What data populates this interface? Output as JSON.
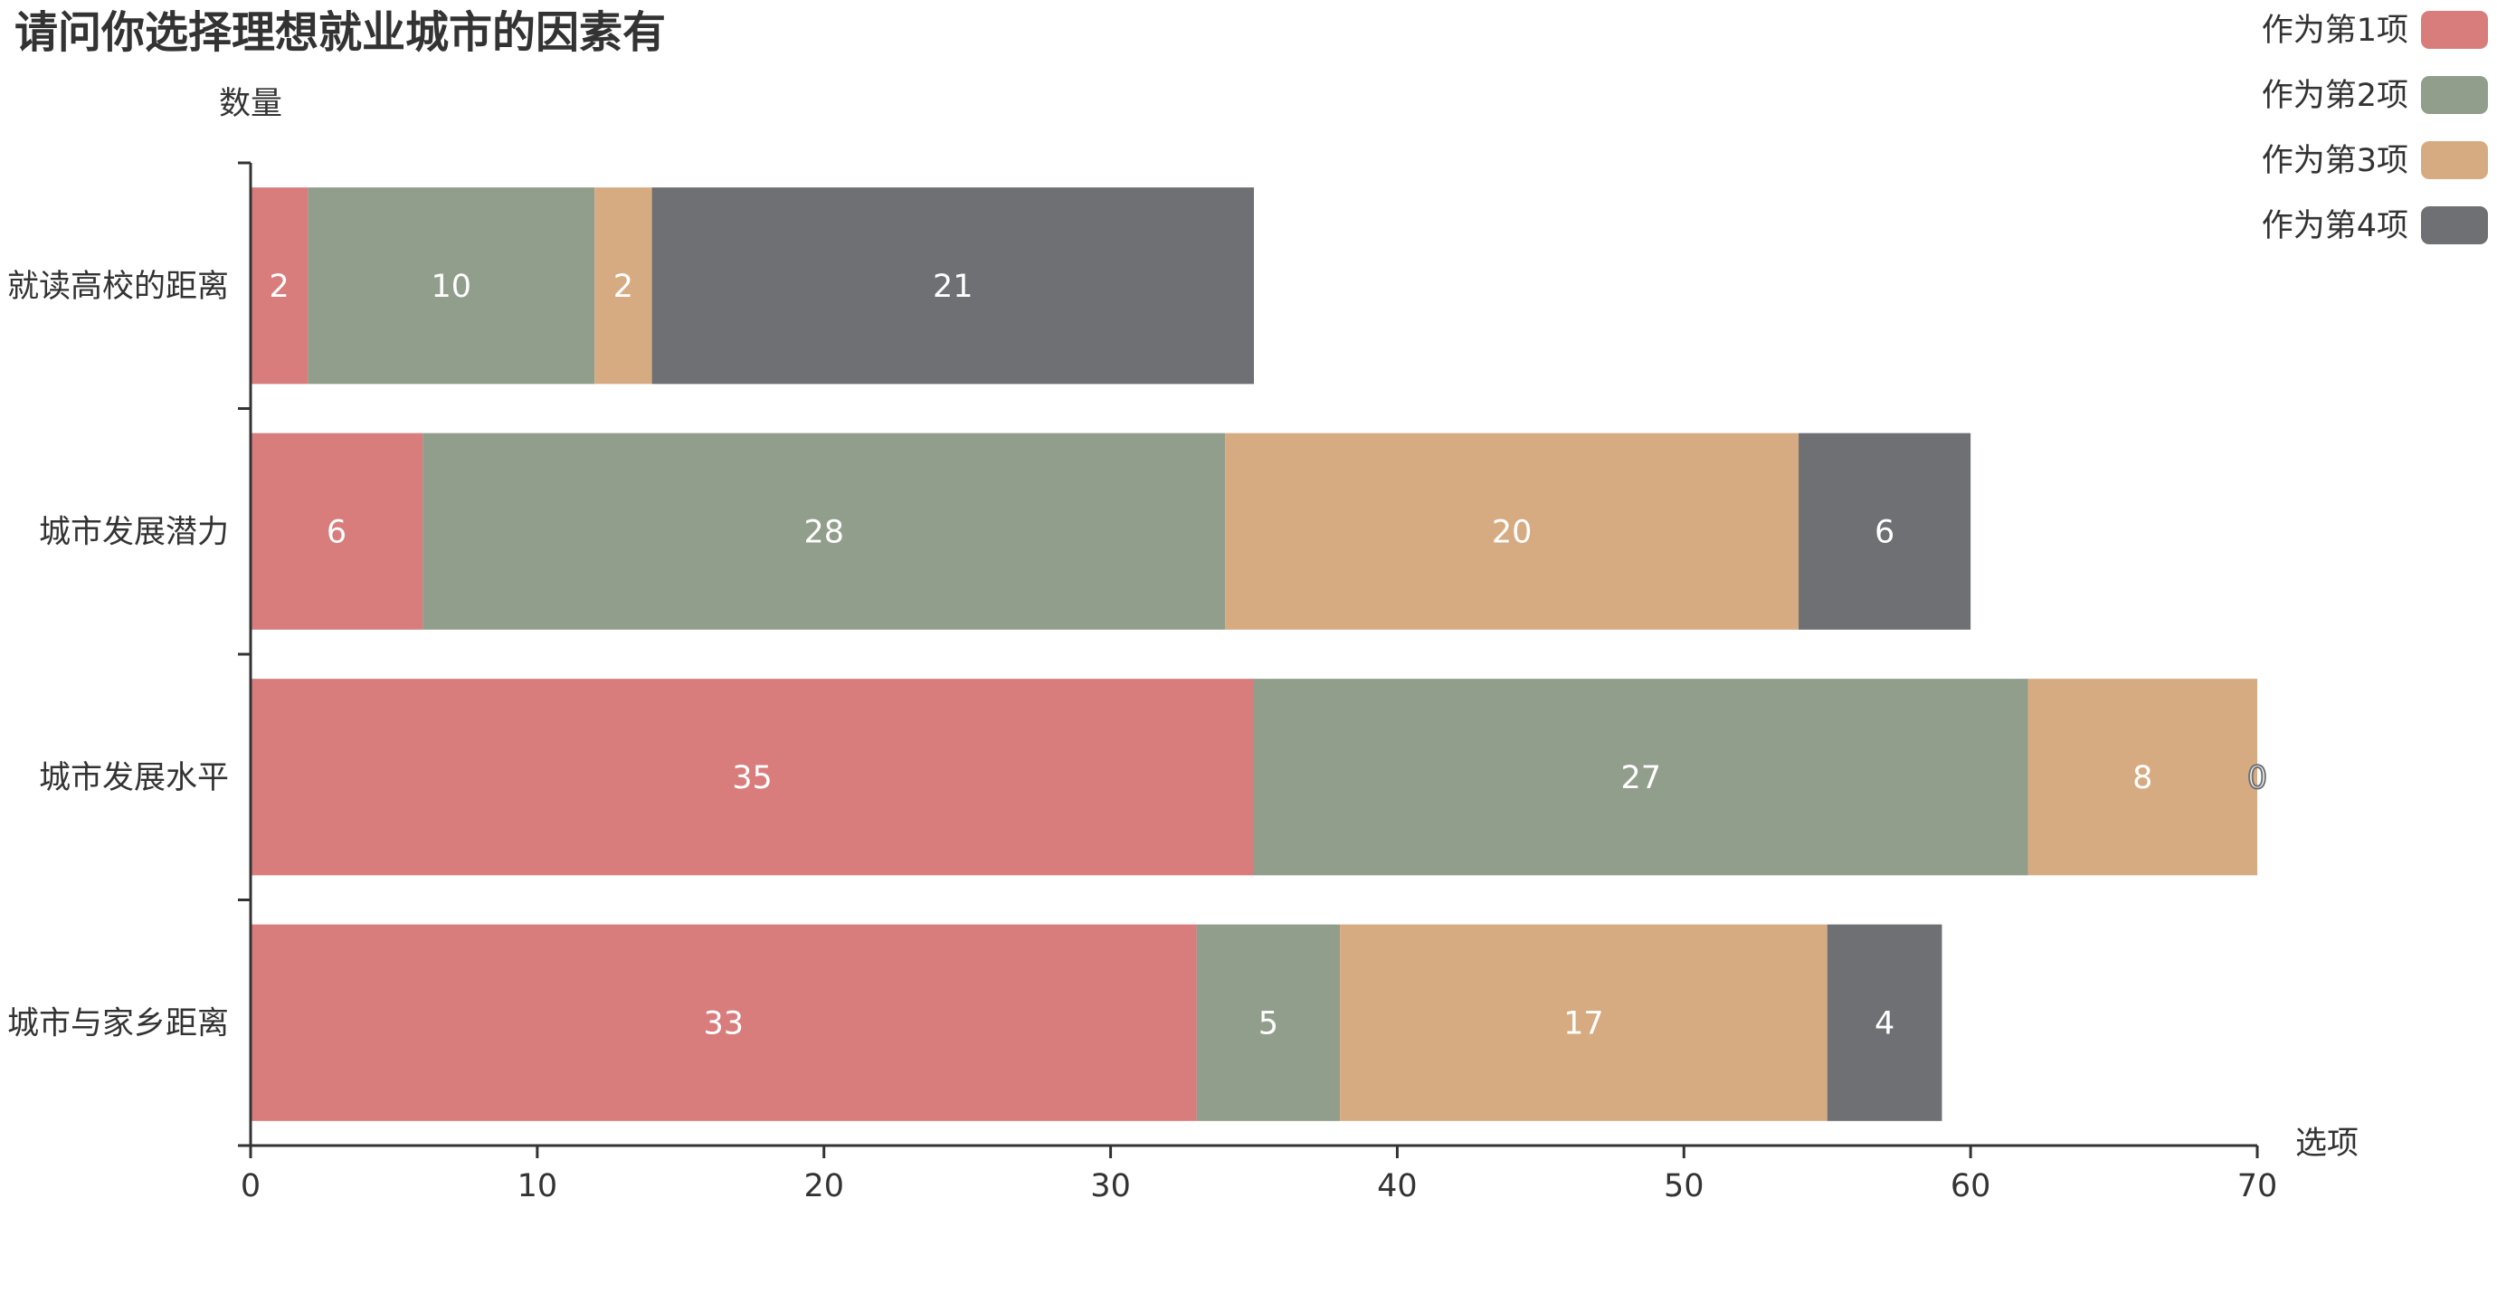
{
  "chart_data": {
    "type": "bar",
    "orientation": "horizontal",
    "stacked": true,
    "title": "请问你选择理想就业城市的因素有",
    "xlabel": "选项",
    "ylabel": "数量",
    "xlim": [
      0,
      70
    ],
    "x_ticks": [
      "0",
      "10",
      "20",
      "30",
      "40",
      "50",
      "60",
      "70"
    ],
    "categories": [
      "就读高校的距离",
      "城市发展潜力",
      "城市发展水平",
      "城市与家乡距离"
    ],
    "series": [
      {
        "name": "作为第1项",
        "color": "#d87c7c",
        "values": [
          2,
          6,
          35,
          33
        ]
      },
      {
        "name": "作为第2项",
        "color": "#919e8b",
        "values": [
          10,
          28,
          27,
          5
        ]
      },
      {
        "name": "作为第3项",
        "color": "#d7ab82",
        "values": [
          2,
          20,
          8,
          17
        ]
      },
      {
        "name": "作为第4项",
        "color": "#6e7074",
        "values": [
          21,
          6,
          0,
          4
        ]
      }
    ],
    "legend_position": "top-right",
    "grid": false
  }
}
